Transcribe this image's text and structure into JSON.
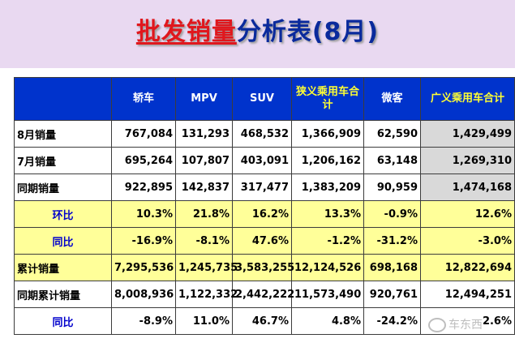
{
  "title": {
    "highlight": "批发销量",
    "rest": "分析表(8月)"
  },
  "columns": [
    "",
    "轿车",
    "MPV",
    "SUV",
    "狭义乘用车合计",
    "微客",
    "广义乘用车合计"
  ],
  "rows": [
    {
      "label": "8月销量",
      "style": "white",
      "values": [
        "767,084",
        "131,293",
        "468,532",
        "1,366,909",
        "62,590",
        "1,429,499"
      ]
    },
    {
      "label": "7月销量",
      "style": "white",
      "values": [
        "695,264",
        "107,807",
        "403,091",
        "1,206,162",
        "63,148",
        "1,269,310"
      ]
    },
    {
      "label": "同期销量",
      "style": "white",
      "values": [
        "922,895",
        "142,837",
        "317,477",
        "1,383,209",
        "90,959",
        "1,474,168"
      ]
    },
    {
      "label": "环比",
      "style": "yellow",
      "values": [
        "10.3%",
        "21.8%",
        "16.2%",
        "13.3%",
        "-0.9%",
        "12.6%"
      ]
    },
    {
      "label": "同比",
      "style": "yellow",
      "values": [
        "-16.9%",
        "-8.1%",
        "47.6%",
        "-1.2%",
        "-31.2%",
        "-3.0%"
      ]
    },
    {
      "label": "累计销量",
      "style": "yellow",
      "values": [
        "7,295,536",
        "1,245,735",
        "3,583,255",
        "12,124,526",
        "698,168",
        "12,822,694"
      ]
    },
    {
      "label": "同期累计销量",
      "style": "white",
      "values": [
        "8,008,936",
        "1,122,332",
        "2,442,222",
        "11,573,490",
        "920,761",
        "12,494,251"
      ]
    },
    {
      "label": "同比",
      "style": "white",
      "values": [
        "-8.9%",
        "11.0%",
        "46.7%",
        "4.8%",
        "-24.2%",
        "2.6%"
      ]
    }
  ],
  "watermark": "车东西",
  "colors": {
    "positive": "#1a9e1a",
    "negative": "#e01818",
    "header_bg": "#0033cc",
    "band_bg": "#e9d9f1"
  }
}
